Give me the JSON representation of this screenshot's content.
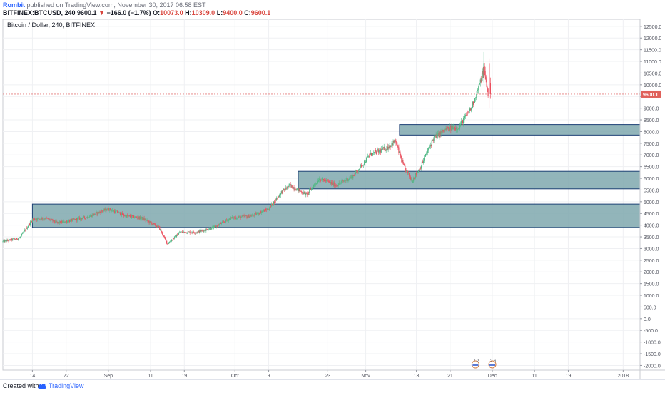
{
  "header": {
    "author": "Rombit",
    "published_text": "published on TradingView.com, November 30, 2017 06:58 EST",
    "symbol": "BITFINEX:BTCUSD, 240",
    "last": "9600.1",
    "change_arrow": "▼",
    "change": "−166.0 (−1.7%)",
    "o_label": "O:",
    "o_value": "10073.0",
    "h_label": "H:",
    "h_value": "10309.0",
    "l_label": "L:",
    "l_value": "9400.0",
    "c_label": "C:",
    "c_value": "9600.1"
  },
  "footer": {
    "created_with": "Created with",
    "brand": "TradingView",
    "brand_icon": "tradingview-cloud-icon"
  },
  "colors": {
    "up": "#53b987",
    "down": "#eb4d5c",
    "zone_fill": "#7fa8ae",
    "zone_stroke": "#1c3f74",
    "price_line": "#e57f7f",
    "price_label_bg": "#e0605a",
    "grid": "#eff0f3"
  },
  "chart_data": {
    "type": "candlestick",
    "title": "Bitcoin / Dollar, 240, BITFINEX",
    "x_ticks": [
      "14",
      "22",
      "Sep",
      "11",
      "19",
      "Oct",
      "9",
      "23",
      "Nov",
      "13",
      "21",
      "Dec",
      "11",
      "19",
      "2018"
    ],
    "y_ticks": [
      12500,
      12000,
      11500,
      11000,
      10500,
      10000,
      9500,
      9000,
      8500,
      8000,
      7500,
      7000,
      6500,
      6000,
      5500,
      5000,
      4500,
      4000,
      3500,
      3000,
      2500,
      2000,
      1500,
      1000,
      500,
      0,
      -500,
      -1000,
      -1500,
      -2000
    ],
    "ylim": [
      -2200,
      12800
    ],
    "last_price": 9600.1,
    "price_path": [
      {
        "date": "2017-08-07",
        "price": 3300
      },
      {
        "date": "2017-08-11",
        "price": 3450
      },
      {
        "date": "2017-08-14",
        "price": 4250
      },
      {
        "date": "2017-08-17",
        "price": 4300
      },
      {
        "date": "2017-08-20",
        "price": 4100
      },
      {
        "date": "2017-08-23",
        "price": 4200
      },
      {
        "date": "2017-08-27",
        "price": 4350
      },
      {
        "date": "2017-09-01",
        "price": 4700
      },
      {
        "date": "2017-09-05",
        "price": 4400
      },
      {
        "date": "2017-09-09",
        "price": 4300
      },
      {
        "date": "2017-09-13",
        "price": 3900
      },
      {
        "date": "2017-09-15",
        "price": 3200
      },
      {
        "date": "2017-09-18",
        "price": 3700
      },
      {
        "date": "2017-09-22",
        "price": 3700
      },
      {
        "date": "2017-09-26",
        "price": 3900
      },
      {
        "date": "2017-09-30",
        "price": 4300
      },
      {
        "date": "2017-10-05",
        "price": 4400
      },
      {
        "date": "2017-10-09",
        "price": 4700
      },
      {
        "date": "2017-10-12",
        "price": 5400
      },
      {
        "date": "2017-10-14",
        "price": 5700
      },
      {
        "date": "2017-10-18",
        "price": 5300
      },
      {
        "date": "2017-10-21",
        "price": 6000
      },
      {
        "date": "2017-10-25",
        "price": 5700
      },
      {
        "date": "2017-10-29",
        "price": 6100
      },
      {
        "date": "2017-11-02",
        "price": 7000
      },
      {
        "date": "2017-11-06",
        "price": 7300
      },
      {
        "date": "2017-11-08",
        "price": 7600
      },
      {
        "date": "2017-11-10",
        "price": 6500
      },
      {
        "date": "2017-11-12",
        "price": 5900
      },
      {
        "date": "2017-11-14",
        "price": 6500
      },
      {
        "date": "2017-11-17",
        "price": 7700
      },
      {
        "date": "2017-11-20",
        "price": 8100
      },
      {
        "date": "2017-11-23",
        "price": 8200
      },
      {
        "date": "2017-11-26",
        "price": 9000
      },
      {
        "date": "2017-11-28",
        "price": 10000
      },
      {
        "date": "2017-11-29",
        "price": 10700
      },
      {
        "date": "2017-11-30",
        "price": 9600
      }
    ],
    "zones": [
      {
        "from": "2017-08-14",
        "to": "2018-01-05",
        "low": 3900,
        "high": 4900
      },
      {
        "from": "2017-10-16",
        "to": "2018-01-05",
        "low": 5550,
        "high": 6300
      },
      {
        "from": "2017-11-09",
        "to": "2018-01-05",
        "low": 7850,
        "high": 8300
      }
    ],
    "events": [
      {
        "date": "2017-11-27",
        "label": "7 2"
      },
      {
        "date": "2017-12-01",
        "label": "2 6"
      }
    ]
  }
}
